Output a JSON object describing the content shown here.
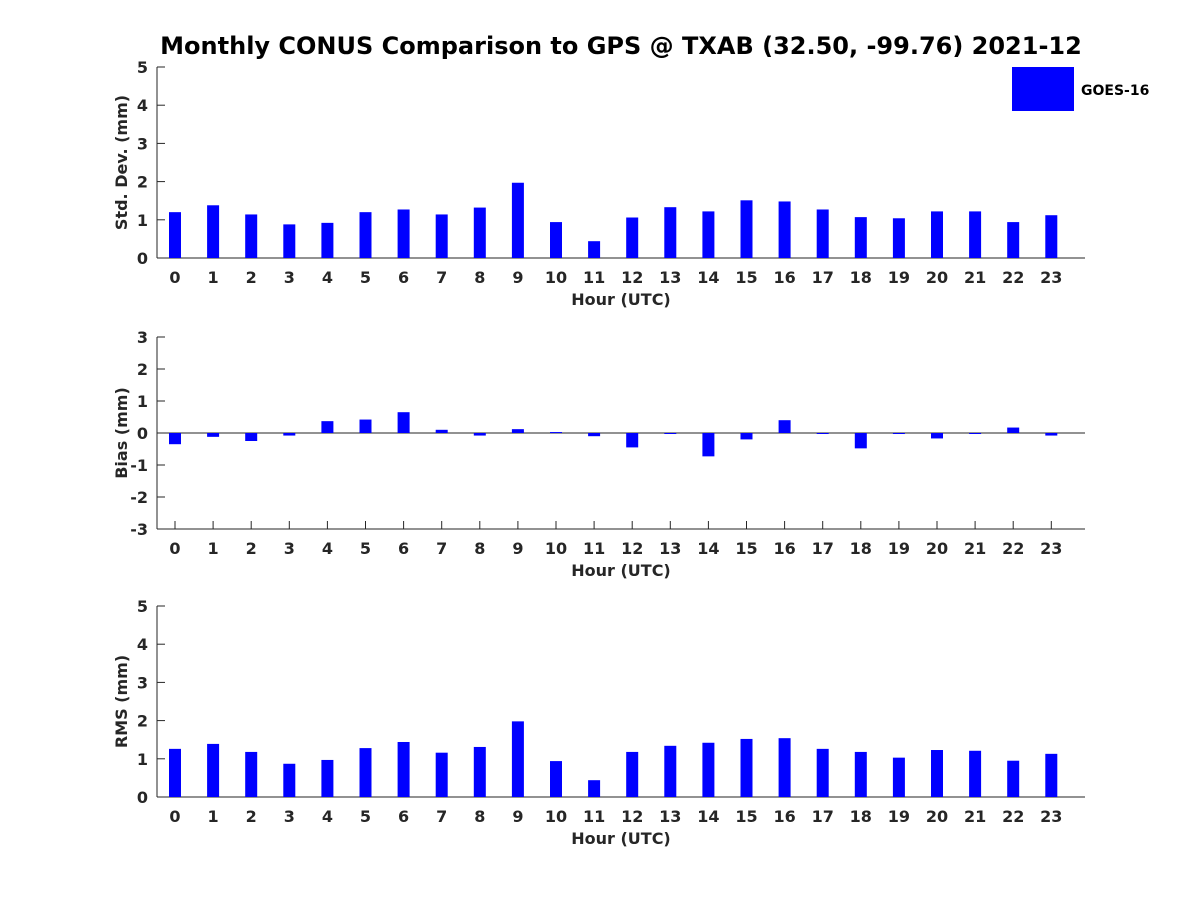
{
  "figure": {
    "title": "Monthly CONUS Comparison to GPS @ TXAB (32.50, -99.76) 2021-12"
  },
  "legend": {
    "label": "GOES-16",
    "color": "#0000ff",
    "placement": "top-right"
  },
  "chart_data": [
    {
      "type": "bar",
      "ylabel": "Std. Dev. (mm)",
      "xlabel": "Hour (UTC)",
      "ylim": [
        0,
        5
      ],
      "yticks": [
        0,
        1,
        2,
        3,
        4,
        5
      ],
      "categories": [
        "0",
        "1",
        "2",
        "3",
        "4",
        "5",
        "6",
        "7",
        "8",
        "9",
        "10",
        "11",
        "12",
        "13",
        "14",
        "15",
        "16",
        "17",
        "18",
        "19",
        "20",
        "21",
        "22",
        "23"
      ],
      "series": [
        {
          "name": "GOES-16",
          "color": "#0000ff",
          "values": [
            1.2,
            1.38,
            1.14,
            0.88,
            0.92,
            1.2,
            1.27,
            1.14,
            1.32,
            1.97,
            0.94,
            0.44,
            1.06,
            1.33,
            1.22,
            1.51,
            1.48,
            1.27,
            1.07,
            1.04,
            1.22,
            1.22,
            0.94,
            1.12
          ]
        }
      ]
    },
    {
      "type": "bar",
      "ylabel": "Bias (mm)",
      "xlabel": "Hour (UTC)",
      "ylim": [
        -3,
        3
      ],
      "yticks": [
        -3,
        -2,
        -1,
        0,
        1,
        2,
        3
      ],
      "categories": [
        "0",
        "1",
        "2",
        "3",
        "4",
        "5",
        "6",
        "7",
        "8",
        "9",
        "10",
        "11",
        "12",
        "13",
        "14",
        "15",
        "16",
        "17",
        "18",
        "19",
        "20",
        "21",
        "22",
        "23"
      ],
      "series": [
        {
          "name": "GOES-16",
          "color": "#0000ff",
          "values": [
            -0.35,
            -0.12,
            -0.25,
            -0.08,
            0.37,
            0.42,
            0.65,
            0.1,
            -0.08,
            0.12,
            0.03,
            -0.1,
            -0.45,
            -0.02,
            -0.73,
            -0.2,
            0.4,
            -0.02,
            -0.48,
            -0.02,
            -0.17,
            -0.02,
            0.17,
            -0.08
          ]
        }
      ]
    },
    {
      "type": "bar",
      "ylabel": "RMS (mm)",
      "xlabel": "Hour (UTC)",
      "ylim": [
        0,
        5
      ],
      "yticks": [
        0,
        1,
        2,
        3,
        4,
        5
      ],
      "categories": [
        "0",
        "1",
        "2",
        "3",
        "4",
        "5",
        "6",
        "7",
        "8",
        "9",
        "10",
        "11",
        "12",
        "13",
        "14",
        "15",
        "16",
        "17",
        "18",
        "19",
        "20",
        "21",
        "22",
        "23"
      ],
      "series": [
        {
          "name": "GOES-16",
          "color": "#0000ff",
          "values": [
            1.26,
            1.39,
            1.18,
            0.87,
            0.97,
            1.28,
            1.44,
            1.16,
            1.31,
            1.98,
            0.94,
            0.44,
            1.18,
            1.34,
            1.42,
            1.52,
            1.54,
            1.26,
            1.18,
            1.03,
            1.23,
            1.21,
            0.95,
            1.13
          ]
        }
      ]
    }
  ]
}
